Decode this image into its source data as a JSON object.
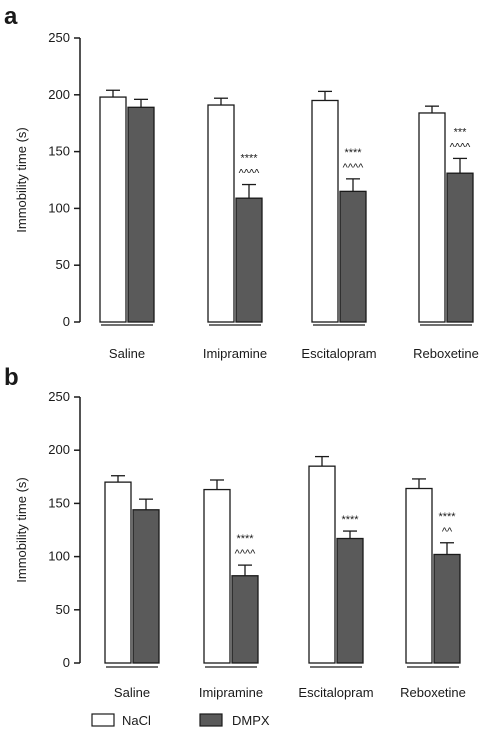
{
  "chart_data": [
    {
      "panel": "a",
      "type": "bar",
      "ylabel": "Immobility time (s)",
      "ylim": [
        0,
        250
      ],
      "yticks": [
        "0",
        "50",
        "100",
        "150",
        "200",
        "250"
      ],
      "categories": [
        "Saline",
        "Imipramine",
        "Escitalopram",
        "Reboxetine"
      ],
      "series": [
        {
          "name": "NaCl",
          "values": [
            198,
            191,
            195,
            184
          ],
          "errors": [
            6,
            6,
            8,
            6
          ]
        },
        {
          "name": "DMPX",
          "values": [
            189,
            109,
            115,
            131
          ],
          "errors": [
            7,
            12,
            11,
            13
          ]
        }
      ],
      "annotations": [
        {
          "category": "Imipramine",
          "lines": [
            "****",
            "^^^^"
          ]
        },
        {
          "category": "Escitalopram",
          "lines": [
            "****",
            "^^^^"
          ]
        },
        {
          "category": "Reboxetine",
          "lines": [
            "***",
            "^^^^"
          ]
        }
      ]
    },
    {
      "panel": "b",
      "type": "bar",
      "ylabel": "Immobility time (s)",
      "ylim": [
        0,
        250
      ],
      "yticks": [
        "0",
        "50",
        "100",
        "150",
        "200",
        "250"
      ],
      "categories": [
        "Saline",
        "Imipramine",
        "Escitalopram",
        "Reboxetine"
      ],
      "series": [
        {
          "name": "NaCl",
          "values": [
            170,
            163,
            185,
            164
          ],
          "errors": [
            6,
            9,
            9,
            9
          ]
        },
        {
          "name": "DMPX",
          "values": [
            144,
            82,
            117,
            102
          ],
          "errors": [
            10,
            10,
            7,
            11
          ]
        }
      ],
      "annotations": [
        {
          "category": "Imipramine",
          "lines": [
            "****",
            "^^^^"
          ]
        },
        {
          "category": "Escitalopram",
          "lines": [
            "****"
          ]
        },
        {
          "category": "Reboxetine",
          "lines": [
            "****",
            "^^"
          ]
        }
      ]
    }
  ],
  "legend": [
    {
      "label": "NaCl",
      "color": "#ffffff"
    },
    {
      "label": "DMPX",
      "color": "#5a5a5a"
    }
  ],
  "colors": {
    "nacl": "#ffffff",
    "dmpx": "#5a5a5a",
    "axis": "#1a1a1a"
  }
}
